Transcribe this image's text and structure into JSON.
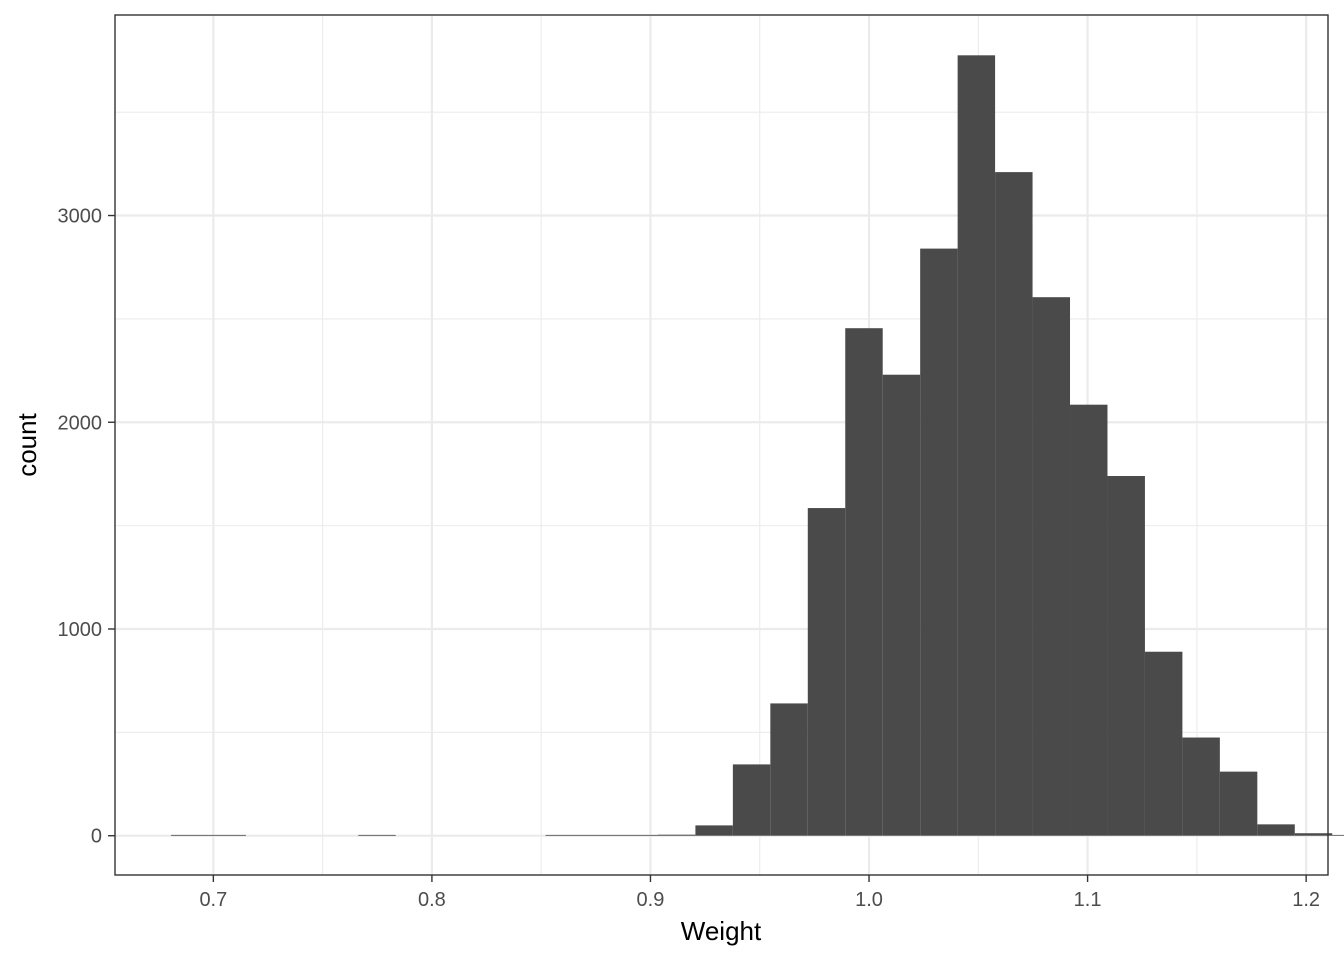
{
  "chart_data": {
    "type": "bar",
    "subtype": "histogram",
    "title": "",
    "xlabel": "Weight",
    "ylabel": "count",
    "xlim": [
      0.655,
      1.21
    ],
    "ylim": [
      -190,
      3970
    ],
    "x_ticks": [
      0.7,
      0.8,
      0.9,
      1.0,
      1.1,
      1.2
    ],
    "x_tick_labels": [
      "0.7",
      "0.8",
      "0.9",
      "1.0",
      "1.1",
      "1.2"
    ],
    "y_ticks": [
      0,
      1000,
      2000,
      3000
    ],
    "y_tick_labels": [
      "0",
      "1000",
      "2000",
      "3000"
    ],
    "bin_width": 0.01714,
    "bin_start": 0.6806,
    "counts": [
      2,
      2,
      0,
      0,
      0,
      1,
      0,
      0,
      0,
      0,
      1,
      1,
      1,
      5,
      50,
      345,
      640,
      1585,
      2455,
      2230,
      2840,
      3775,
      3210,
      2605,
      2085,
      1740,
      890,
      475,
      310,
      55,
      12,
      3,
      2
    ],
    "grid": true,
    "colors": {
      "bar_fill": "#4a4a4a",
      "grid_major": "#ebebeb",
      "panel_border": "#333333",
      "background": "#ffffff"
    }
  }
}
